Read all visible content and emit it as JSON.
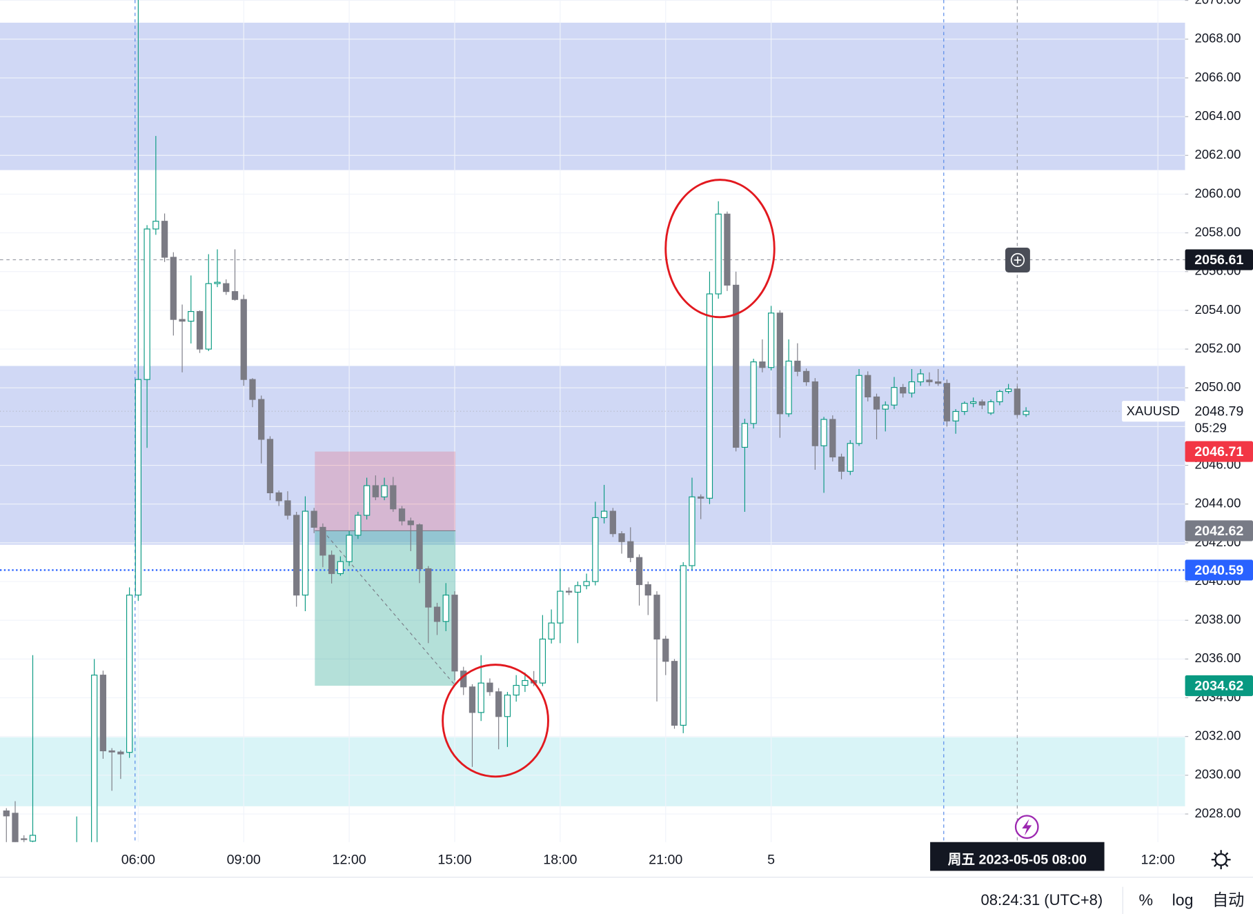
{
  "chart_data": {
    "type": "candlestick",
    "symbol": "XAUUSD",
    "up_color": "#089981",
    "down_color": "#7b7b84",
    "grid": true,
    "ylim": [
      2026.55,
      2070.02
    ],
    "yticks": [
      {
        "value": 2028,
        "label": "2028.00"
      },
      {
        "value": 2030,
        "label": "2030.00"
      },
      {
        "value": 2032,
        "label": "2032.00"
      },
      {
        "value": 2034,
        "label": "2034.00"
      },
      {
        "value": 2036,
        "label": "2036.00"
      },
      {
        "value": 2038,
        "label": "2038.00"
      },
      {
        "value": 2040,
        "label": "2040.00"
      },
      {
        "value": 2042,
        "label": "2042.00"
      },
      {
        "value": 2044,
        "label": "2044.00"
      },
      {
        "value": 2046,
        "label": "2046.00"
      },
      {
        "value": 2048,
        "label": "2048.00"
      },
      {
        "value": 2050,
        "label": "2050.00"
      },
      {
        "value": 2052,
        "label": "2052.00"
      },
      {
        "value": 2054,
        "label": "2054.00"
      },
      {
        "value": 2056,
        "label": "2056.00"
      },
      {
        "value": 2058,
        "label": "2058.00"
      },
      {
        "value": 2060,
        "label": "2060.00"
      },
      {
        "value": 2062,
        "label": "2062.00"
      },
      {
        "value": 2064,
        "label": "2064.00"
      },
      {
        "value": 2066,
        "label": "2066.00"
      },
      {
        "value": 2068,
        "label": "2068.00"
      },
      {
        "value": 2070,
        "label": "2070.00"
      }
    ],
    "categories": [
      null,
      null,
      null,
      null,
      null,
      null,
      null,
      null,
      null,
      null,
      null,
      null,
      null,
      null,
      null,
      "06:00",
      null,
      null,
      null,
      null,
      null,
      null,
      null,
      null,
      null,
      null,
      null,
      "09:00",
      null,
      null,
      null,
      null,
      null,
      null,
      null,
      null,
      null,
      null,
      null,
      "12:00",
      null,
      null,
      null,
      null,
      null,
      null,
      null,
      null,
      null,
      null,
      null,
      "15:00",
      null,
      null,
      null,
      null,
      null,
      null,
      null,
      null,
      null,
      null,
      null,
      "18:00",
      null,
      null,
      null,
      null,
      null,
      null,
      null,
      null,
      null,
      null,
      null,
      "21:00",
      null,
      null,
      null,
      null,
      null,
      null,
      null,
      null,
      null,
      null,
      null,
      "5",
      null,
      null,
      null,
      null,
      null,
      null,
      null,
      null,
      null,
      null,
      null,
      null,
      null,
      null,
      null,
      null,
      null,
      null,
      null,
      null,
      null,
      null,
      null,
      null,
      null,
      null,
      null,
      null,
      null,
      null,
      null,
      null,
      null,
      null,
      null,
      null,
      null,
      null,
      null,
      null,
      null,
      null,
      null,
      "12:00"
    ],
    "values": [
      [
        2028.16,
        2028.3,
        2026.0,
        2027.9
      ],
      [
        2028.04,
        2028.66,
        2025.5,
        2026.0
      ],
      [
        2026.72,
        2026.9,
        2026.3,
        2026.7
      ],
      [
        2026.6,
        2036.2,
        2026.0,
        2026.9
      ],
      null,
      null,
      null,
      null,
      [
        2025.0,
        2027.87,
        2024.5,
        2025.8
      ],
      null,
      [
        2025.0,
        2036.0,
        2024.0,
        2035.17
      ],
      [
        2035.17,
        2035.4,
        2030.85,
        2031.26
      ],
      [
        2031.26,
        2031.4,
        2029.2,
        2031.2
      ],
      [
        2031.2,
        2031.3,
        2029.81,
        2031.1
      ],
      [
        2031.18,
        2039.7,
        2030.9,
        2039.3
      ],
      [
        2039.3,
        2071.0,
        2039.0,
        2050.43
      ],
      [
        2050.43,
        2058.4,
        2046.9,
        2058.2
      ],
      [
        2058.2,
        2063.0,
        2057.9,
        2058.6
      ],
      [
        2058.6,
        2059.0,
        2056.5,
        2056.74
      ],
      [
        2056.74,
        2057.0,
        2052.7,
        2053.53
      ],
      [
        2053.53,
        2054.3,
        2050.8,
        2053.44
      ],
      [
        2053.44,
        2055.8,
        2052.29,
        2053.94
      ],
      [
        2053.94,
        2054.0,
        2051.8,
        2052.0
      ],
      [
        2052.0,
        2056.9,
        2051.9,
        2055.38
      ],
      [
        2055.38,
        2057.15,
        2055.2,
        2055.45
      ],
      [
        2055.38,
        2055.6,
        2054.8,
        2054.97
      ],
      [
        2054.97,
        2057.15,
        2054.5,
        2054.56
      ],
      [
        2054.56,
        2054.8,
        2050.1,
        2050.43
      ],
      [
        2050.43,
        2050.5,
        2049.0,
        2049.4
      ],
      [
        2049.4,
        2049.6,
        2046.1,
        2047.34
      ],
      [
        2047.34,
        2047.5,
        2044.2,
        2044.58
      ],
      [
        2044.58,
        2044.7,
        2043.9,
        2044.17
      ],
      [
        2044.17,
        2044.66,
        2043.2,
        2043.42
      ],
      [
        2043.42,
        2043.6,
        2038.7,
        2039.3
      ],
      [
        2039.3,
        2044.4,
        2038.47,
        2043.63
      ],
      [
        2043.63,
        2043.8,
        2042.5,
        2042.8
      ],
      [
        2042.8,
        2043.0,
        2040.74,
        2041.36
      ],
      [
        2041.36,
        2041.6,
        2039.9,
        2040.41
      ],
      [
        2040.41,
        2041.3,
        2040.3,
        2041.03
      ],
      [
        2041.03,
        2042.6,
        2040.8,
        2042.39
      ],
      [
        2042.39,
        2043.6,
        2042.2,
        2043.42
      ],
      [
        2043.42,
        2045.36,
        2043.2,
        2044.95
      ],
      [
        2044.95,
        2045.48,
        2044.2,
        2044.37
      ],
      [
        2044.37,
        2045.36,
        2044.2,
        2044.95
      ],
      [
        2044.95,
        2045.4,
        2043.6,
        2043.75
      ],
      [
        2043.75,
        2043.9,
        2042.9,
        2043.13
      ],
      [
        2043.13,
        2043.3,
        2041.57,
        2042.93
      ],
      [
        2042.93,
        2043.0,
        2039.92,
        2040.66
      ],
      [
        2040.66,
        2040.8,
        2036.82,
        2038.68
      ],
      [
        2038.68,
        2038.9,
        2037.24,
        2037.94
      ],
      [
        2037.94,
        2039.92,
        2037.44,
        2039.3
      ],
      [
        2039.3,
        2039.5,
        2034.9,
        2035.38
      ],
      [
        2035.38,
        2035.6,
        2034.14,
        2034.56
      ],
      [
        2034.56,
        2034.7,
        2030.43,
        2033.24
      ],
      [
        2033.24,
        2036.2,
        2032.8,
        2034.76
      ],
      [
        2034.76,
        2035.0,
        2034.1,
        2034.31
      ],
      [
        2034.31,
        2034.5,
        2031.34,
        2033.03
      ],
      [
        2033.03,
        2034.3,
        2031.46,
        2034.14
      ],
      [
        2034.14,
        2035.17,
        2033.8,
        2034.64
      ],
      [
        2034.64,
        2035.3,
        2034.3,
        2034.89
      ],
      [
        2034.89,
        2035.38,
        2034.6,
        2034.76
      ],
      [
        2034.76,
        2038.27,
        2034.6,
        2037.03
      ],
      [
        2037.03,
        2038.56,
        2036.8,
        2037.86
      ],
      [
        2037.86,
        2040.66,
        2036.82,
        2039.5
      ],
      [
        2039.5,
        2039.7,
        2039.3,
        2039.45
      ],
      [
        2039.45,
        2040.0,
        2036.82,
        2039.79
      ],
      [
        2039.79,
        2040.41,
        2039.6,
        2040.0
      ],
      [
        2040.0,
        2044.12,
        2039.8,
        2043.3
      ],
      [
        2043.3,
        2044.99,
        2043.0,
        2043.63
      ],
      [
        2043.63,
        2043.8,
        2042.3,
        2042.47
      ],
      [
        2042.47,
        2042.6,
        2041.44,
        2042.06
      ],
      [
        2042.06,
        2042.8,
        2041.0,
        2041.24
      ],
      [
        2041.24,
        2041.4,
        2038.76,
        2039.84
      ],
      [
        2039.84,
        2040.0,
        2038.27,
        2039.3
      ],
      [
        2039.3,
        2039.5,
        2033.81,
        2037.03
      ],
      [
        2037.03,
        2037.2,
        2035.17,
        2035.88
      ],
      [
        2035.88,
        2036.0,
        2032.4,
        2032.58
      ],
      [
        2032.58,
        2041.0,
        2032.17,
        2040.82
      ],
      [
        2040.82,
        2045.36,
        2040.6,
        2044.37
      ],
      [
        2044.37,
        2044.5,
        2043.22,
        2044.3
      ],
      [
        2044.3,
        2056.0,
        2044.0,
        2054.85
      ],
      [
        2054.85,
        2059.63,
        2054.6,
        2058.97
      ],
      [
        2058.97,
        2059.1,
        2055.0,
        2055.3
      ],
      [
        2055.3,
        2056.0,
        2046.72,
        2046.93
      ],
      [
        2046.93,
        2048.4,
        2043.6,
        2048.16
      ],
      [
        2048.16,
        2051.5,
        2047.9,
        2051.34
      ],
      [
        2051.34,
        2052.5,
        2050.8,
        2051.05
      ],
      [
        2051.05,
        2054.23,
        2050.9,
        2053.86
      ],
      [
        2053.86,
        2054.0,
        2047.42,
        2048.66
      ],
      [
        2048.66,
        2052.5,
        2048.5,
        2051.38
      ],
      [
        2051.38,
        2052.3,
        2050.6,
        2050.85
      ],
      [
        2050.85,
        2051.0,
        2050.1,
        2050.31
      ],
      [
        2050.31,
        2050.5,
        2045.77,
        2047.01
      ],
      [
        2047.01,
        2048.5,
        2044.58,
        2048.37
      ],
      [
        2048.37,
        2048.58,
        2046.2,
        2046.43
      ],
      [
        2046.43,
        2046.6,
        2045.28,
        2045.69
      ],
      [
        2045.69,
        2047.3,
        2045.5,
        2047.13
      ],
      [
        2047.13,
        2050.97,
        2047.0,
        2050.64
      ],
      [
        2050.64,
        2050.85,
        2049.3,
        2049.53
      ],
      [
        2049.53,
        2049.7,
        2047.34,
        2048.9
      ],
      [
        2048.9,
        2049.3,
        2047.75,
        2049.11
      ],
      [
        2049.11,
        2050.56,
        2048.9,
        2050.02
      ],
      [
        2050.02,
        2050.2,
        2049.5,
        2049.73
      ],
      [
        2049.73,
        2050.97,
        2049.5,
        2050.31
      ],
      [
        2050.31,
        2050.97,
        2050.1,
        2050.72
      ],
      [
        2050.4,
        2050.8,
        2050.1,
        2050.31
      ],
      [
        2050.31,
        2050.97,
        2050.1,
        2050.23
      ],
      [
        2050.23,
        2050.43,
        2048.0,
        2048.29
      ],
      [
        2048.29,
        2048.9,
        2047.63,
        2048.78
      ],
      [
        2048.78,
        2049.3,
        2048.6,
        2049.2
      ],
      [
        2049.2,
        2049.5,
        2049.0,
        2049.28
      ],
      [
        2049.28,
        2049.4,
        2048.9,
        2049.11
      ],
      [
        2048.7,
        2049.4,
        2048.6,
        2049.28
      ],
      [
        2049.28,
        2049.9,
        2049.1,
        2049.81
      ],
      [
        2049.81,
        2050.2,
        2049.7,
        2049.94
      ],
      [
        2049.94,
        2050.1,
        2048.5,
        2048.62
      ],
      [
        2048.62,
        2049.0,
        2048.5,
        2048.79
      ],
      null,
      null,
      null,
      null,
      null,
      null,
      null,
      null,
      null,
      null,
      null,
      null,
      null,
      null,
      null
    ],
    "zones": [
      {
        "from": 2061.24,
        "to": 2068.85,
        "color": "#d0d8f5"
      },
      {
        "from": 2041.9,
        "to": 2051.13,
        "color": "#d0d8f5"
      },
      {
        "from": 2028.4,
        "to": 2031.96,
        "color": "#d9f4f7"
      }
    ],
    "position": {
      "stop": 2046.71,
      "entry": 2042.62,
      "target": 2034.62,
      "stop_color": "#f23645",
      "entry_color": "#787b86",
      "target_color": "#089981"
    },
    "alert_line": {
      "price": 2040.59,
      "color": "#2962ff"
    },
    "last_price": {
      "value": 2048.79,
      "countdown": "05:29"
    },
    "crosshair": {
      "price": 2056.61,
      "time": "周五 2023-05-05 08:00"
    }
  },
  "status_bar": {
    "clock": "08:24:31 (UTC+8)",
    "buttons": [
      "%",
      "log",
      "自动"
    ]
  }
}
